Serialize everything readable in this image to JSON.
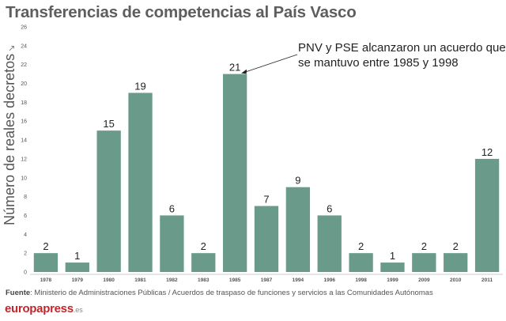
{
  "title": "Transferencias de competencias al País Vasco",
  "annotation": {
    "line1": "PNV y PSE alcanzaron un acuerdo que",
    "line2": "se mantuvo entre 1985 y 1998"
  },
  "source": {
    "label": "Fuente",
    "text": ": Ministerio de Administraciones Públicas / Acuerdos de traspaso de funciones y servicios a las Comunidades Autónomas"
  },
  "logo": {
    "brand": "europapress",
    "suffix": ".es"
  },
  "colors": {
    "bar": "#6a9a89",
    "axis": "#cccccc",
    "tick_text": "#555555",
    "value_text": "#222222"
  },
  "chart_data": {
    "type": "bar",
    "title": "Transferencias de competencias al País Vasco",
    "ylabel": "Número de reales decretos",
    "yunit": "↘",
    "xlabel": "",
    "categories": [
      "1978",
      "1979",
      "1980",
      "1981",
      "1982",
      "1983",
      "1985",
      "1987",
      "1994",
      "1996",
      "1998",
      "1999",
      "2009",
      "2010",
      "2011"
    ],
    "values": [
      2,
      1,
      15,
      19,
      6,
      2,
      21,
      7,
      9,
      6,
      2,
      1,
      2,
      2,
      12
    ],
    "ylim": [
      0,
      26
    ],
    "yticks": [
      0,
      2,
      4,
      6,
      8,
      10,
      12,
      14,
      16,
      18,
      20,
      22,
      24,
      26
    ],
    "grid": false,
    "legend": "none"
  }
}
